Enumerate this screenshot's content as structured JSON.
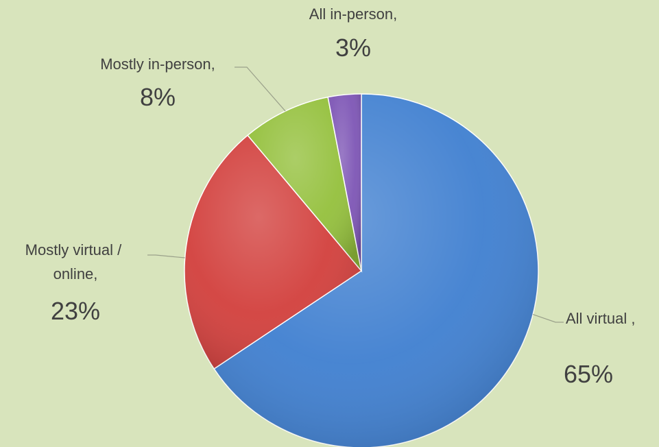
{
  "chart_data": {
    "type": "pie",
    "title": "",
    "slices": [
      {
        "label": "All virtual ,",
        "value": 65,
        "value_label": "65%",
        "color": "#3f7fd0"
      },
      {
        "label": "Mostly virtual / online,",
        "value": 23,
        "value_label": "23%",
        "color": "#d23f3c"
      },
      {
        "label": "Mostly in-person,",
        "value": 8,
        "value_label": "8%",
        "color": "#94c03c"
      },
      {
        "label": "All in-person,",
        "value": 3,
        "value_label": "3%",
        "color": "#7d55b5"
      }
    ],
    "legend": false,
    "start_angle_deg": 0,
    "direction": "clockwise"
  }
}
